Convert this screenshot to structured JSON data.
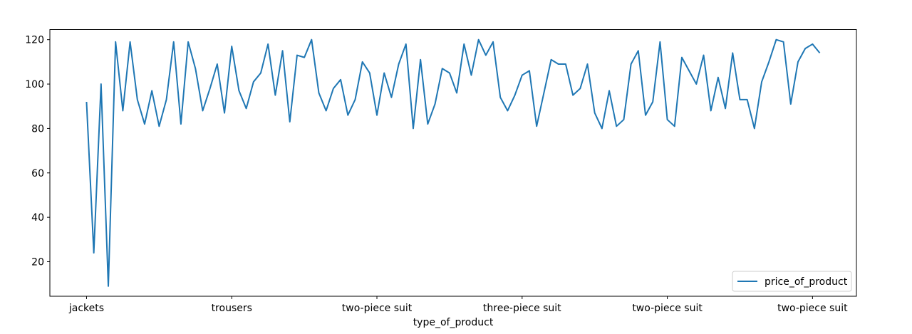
{
  "chart_data": {
    "type": "line",
    "xlabel": "type_of_product",
    "ylabel": "",
    "ylim": [
      4.45,
      124.55
    ],
    "yticks": [
      20,
      40,
      60,
      80,
      100,
      120
    ],
    "xlim": [
      -5.05,
      106.05
    ],
    "xticks": [
      {
        "index": 0,
        "label": "jackets"
      },
      {
        "index": 20,
        "label": "trousers"
      },
      {
        "index": 40,
        "label": "two-piece suit"
      },
      {
        "index": 60,
        "label": "three-piece suit"
      },
      {
        "index": 80,
        "label": "two-piece suit"
      },
      {
        "index": 100,
        "label": "two-piece suit"
      }
    ],
    "legend": {
      "position": "lower-right"
    },
    "series": [
      {
        "name": "price_of_product",
        "color": "#1f77b4",
        "values": [
          92,
          24,
          100,
          9,
          119,
          88,
          119,
          93,
          82,
          97,
          81,
          93,
          119,
          82,
          119,
          107,
          88,
          98,
          109,
          87,
          117,
          97,
          89,
          101,
          105,
          118,
          95,
          115,
          83,
          113,
          112,
          120,
          96,
          88,
          98,
          102,
          86,
          93,
          110,
          105,
          86,
          105,
          94,
          109,
          118,
          80,
          111,
          82,
          91,
          107,
          105,
          96,
          118,
          104,
          120,
          113,
          119,
          94,
          88,
          95,
          104,
          106,
          81,
          96,
          111,
          109,
          109,
          95,
          98,
          109,
          87,
          80,
          97,
          81,
          84,
          109,
          115,
          86,
          92,
          119,
          84,
          81,
          112,
          106,
          100,
          113,
          88,
          103,
          89,
          114,
          93,
          93,
          80,
          101,
          110,
          120,
          119,
          91,
          110,
          116,
          118,
          114
        ]
      }
    ]
  }
}
